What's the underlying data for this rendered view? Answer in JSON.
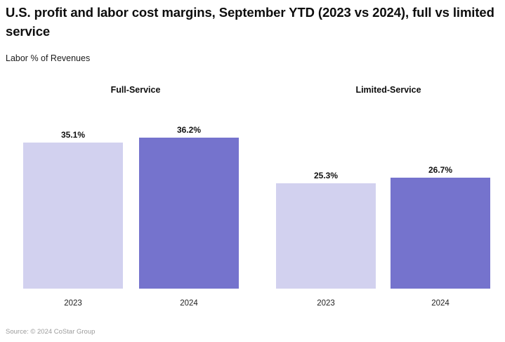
{
  "title": "U.S. profit and labor cost margins, September YTD (2023 vs 2024), full vs limited service",
  "subtitle": "Labor % of Revenues",
  "source": "Source: © 2024 CoStar Group",
  "colors": {
    "bar_2023": "#d2d1ef",
    "bar_2024": "#7573cd",
    "title_text": "#0d0d0d",
    "label_text": "#111111",
    "source_text": "#9b9b9b",
    "background": "#ffffff"
  },
  "chart_data": {
    "type": "bar",
    "unit": "%",
    "title": "U.S. profit and labor cost margins, September YTD (2023 vs 2024), full vs limited service",
    "ylabel": "Labor % of Revenues",
    "categories": [
      "2023",
      "2024"
    ],
    "groups": [
      {
        "name": "Full-Service",
        "series": [
          {
            "category": "2023",
            "value": 35.1,
            "label": "35.1%"
          },
          {
            "category": "2024",
            "value": 36.2,
            "label": "36.2%"
          }
        ]
      },
      {
        "name": "Limited-Service",
        "series": [
          {
            "category": "2023",
            "value": 25.3,
            "label": "25.3%"
          },
          {
            "category": "2024",
            "value": 26.7,
            "label": "26.7%"
          }
        ]
      }
    ],
    "ylim": [
      0,
      40
    ],
    "grid": false,
    "legend": "none",
    "value_labels": "above-bars",
    "source": "Source: © 2024 CoStar Group"
  }
}
